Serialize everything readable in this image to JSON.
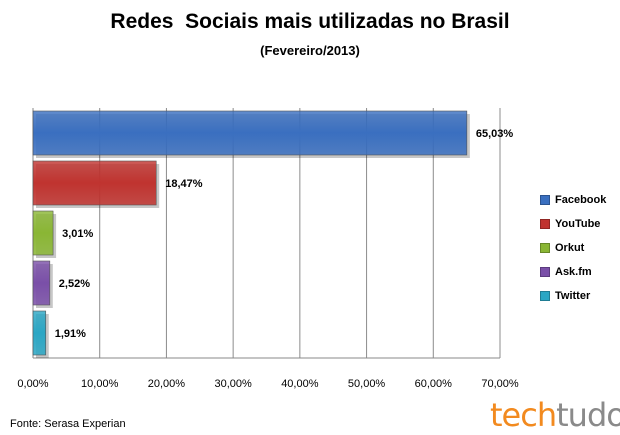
{
  "chart_data": {
    "type": "bar",
    "orientation": "horizontal",
    "title": "Redes  Sociais mais utilizadas no Brasil",
    "subtitle": "(Fevereiro/2013)",
    "categories": [
      "Facebook",
      "YouTube",
      "Orkut",
      "Ask.fm",
      "Twitter"
    ],
    "values": [
      65.03,
      18.47,
      3.01,
      2.52,
      1.91
    ],
    "data_labels": [
      "65,03%",
      "18,47%",
      "3,01%",
      "2,52%",
      "1,91%"
    ],
    "colors": [
      "#3a6fc0",
      "#c0332f",
      "#8ab634",
      "#7a4fa8",
      "#2aa6c4"
    ],
    "xlim": [
      0,
      70
    ],
    "xticks": [
      0,
      10,
      20,
      30,
      40,
      50,
      60,
      70
    ],
    "xtick_labels": [
      "0,00%",
      "10,00%",
      "20,00%",
      "30,00%",
      "40,00%",
      "50,00%",
      "60,00%",
      "70,00%"
    ],
    "grid": "vertical",
    "legend": "right",
    "legend_entries": [
      "Facebook",
      "YouTube",
      "Orkut",
      "Ask.fm",
      "Twitter"
    ]
  },
  "source_text": "Fonte: Serasa Experian",
  "logo": {
    "part1": "tech",
    "part2": "tudo"
  }
}
